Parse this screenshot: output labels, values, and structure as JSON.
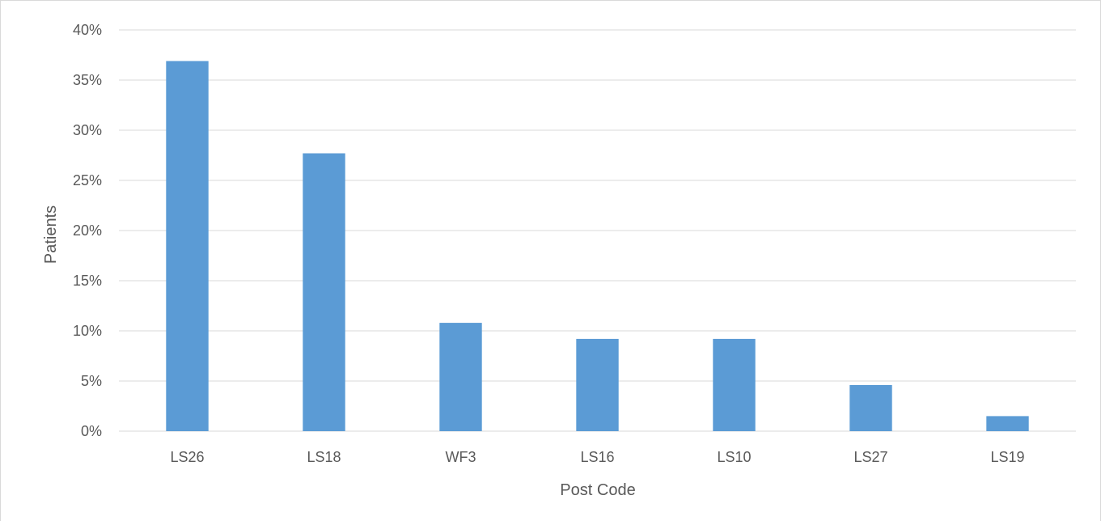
{
  "chart_data": {
    "type": "bar",
    "title": "",
    "xlabel": "Post Code",
    "ylabel": "Patients",
    "categories": [
      "LS26",
      "LS18",
      "WF3",
      "LS16",
      "LS10",
      "LS27",
      "LS19"
    ],
    "values": [
      36.9,
      27.7,
      10.8,
      9.2,
      9.2,
      4.6,
      1.5
    ],
    "value_unit": "percent",
    "ylim": [
      0,
      40
    ],
    "ytick_step": 5,
    "ytick_labels": [
      "0%",
      "5%",
      "10%",
      "15%",
      "20%",
      "25%",
      "30%",
      "35%",
      "40%"
    ],
    "grid": true,
    "legend": "none",
    "bar_color": "#5b9bd5",
    "grid_color": "#d9d9d9"
  }
}
